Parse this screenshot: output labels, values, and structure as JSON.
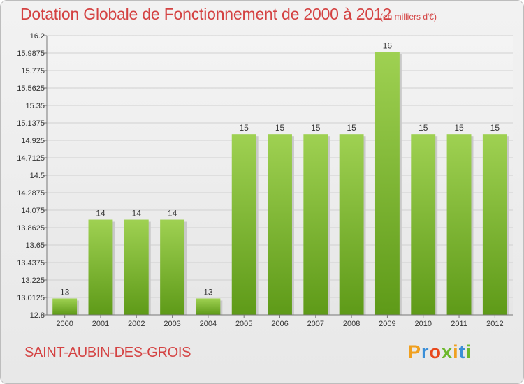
{
  "header": {
    "title": "Dotation Globale de Fonctionnement de 2000 à 2012",
    "unit": "(en milliers d'€)"
  },
  "footer": {
    "place": "SAINT-AUBIN-DES-GROIS",
    "logo_letters": [
      "P",
      "r",
      "o",
      "x",
      "i",
      "t",
      "i"
    ]
  },
  "colors": {
    "title": "#d44242",
    "bar_top": "#9fd152",
    "bar_bottom": "#5e9a18",
    "logo": [
      "#f0a020",
      "#3b8fd8",
      "#e8481c",
      "#6cb82c",
      "#f0a020",
      "#3b8fd8",
      "#6cb82c"
    ]
  },
  "chart_data": {
    "type": "bar",
    "title": "Dotation Globale de Fonctionnement de 2000 à 2012",
    "subtitle": "(en milliers d'€)",
    "categories": [
      "2000",
      "2001",
      "2002",
      "2003",
      "2004",
      "2005",
      "2006",
      "2007",
      "2008",
      "2009",
      "2010",
      "2011",
      "2012"
    ],
    "values": [
      13,
      14,
      14,
      14,
      13,
      15,
      15,
      15,
      15,
      16,
      15,
      15,
      15
    ],
    "bar_values": [
      13.0,
      13.96,
      13.96,
      13.96,
      13.0,
      15.0,
      15.0,
      15.0,
      15.0,
      16.0,
      15.0,
      15.0,
      15.0
    ],
    "yticks": [
      "12.8",
      "13.0125",
      "13.225",
      "13.4375",
      "13.65",
      "13.8625",
      "14.075",
      "14.2875",
      "14.5",
      "14.7125",
      "14.925",
      "15.1375",
      "15.35",
      "15.5625",
      "15.775",
      "15.9875",
      "16.2"
    ],
    "ylim": [
      12.8,
      16.2
    ],
    "grid": true,
    "xlabel": "",
    "ylabel": ""
  }
}
